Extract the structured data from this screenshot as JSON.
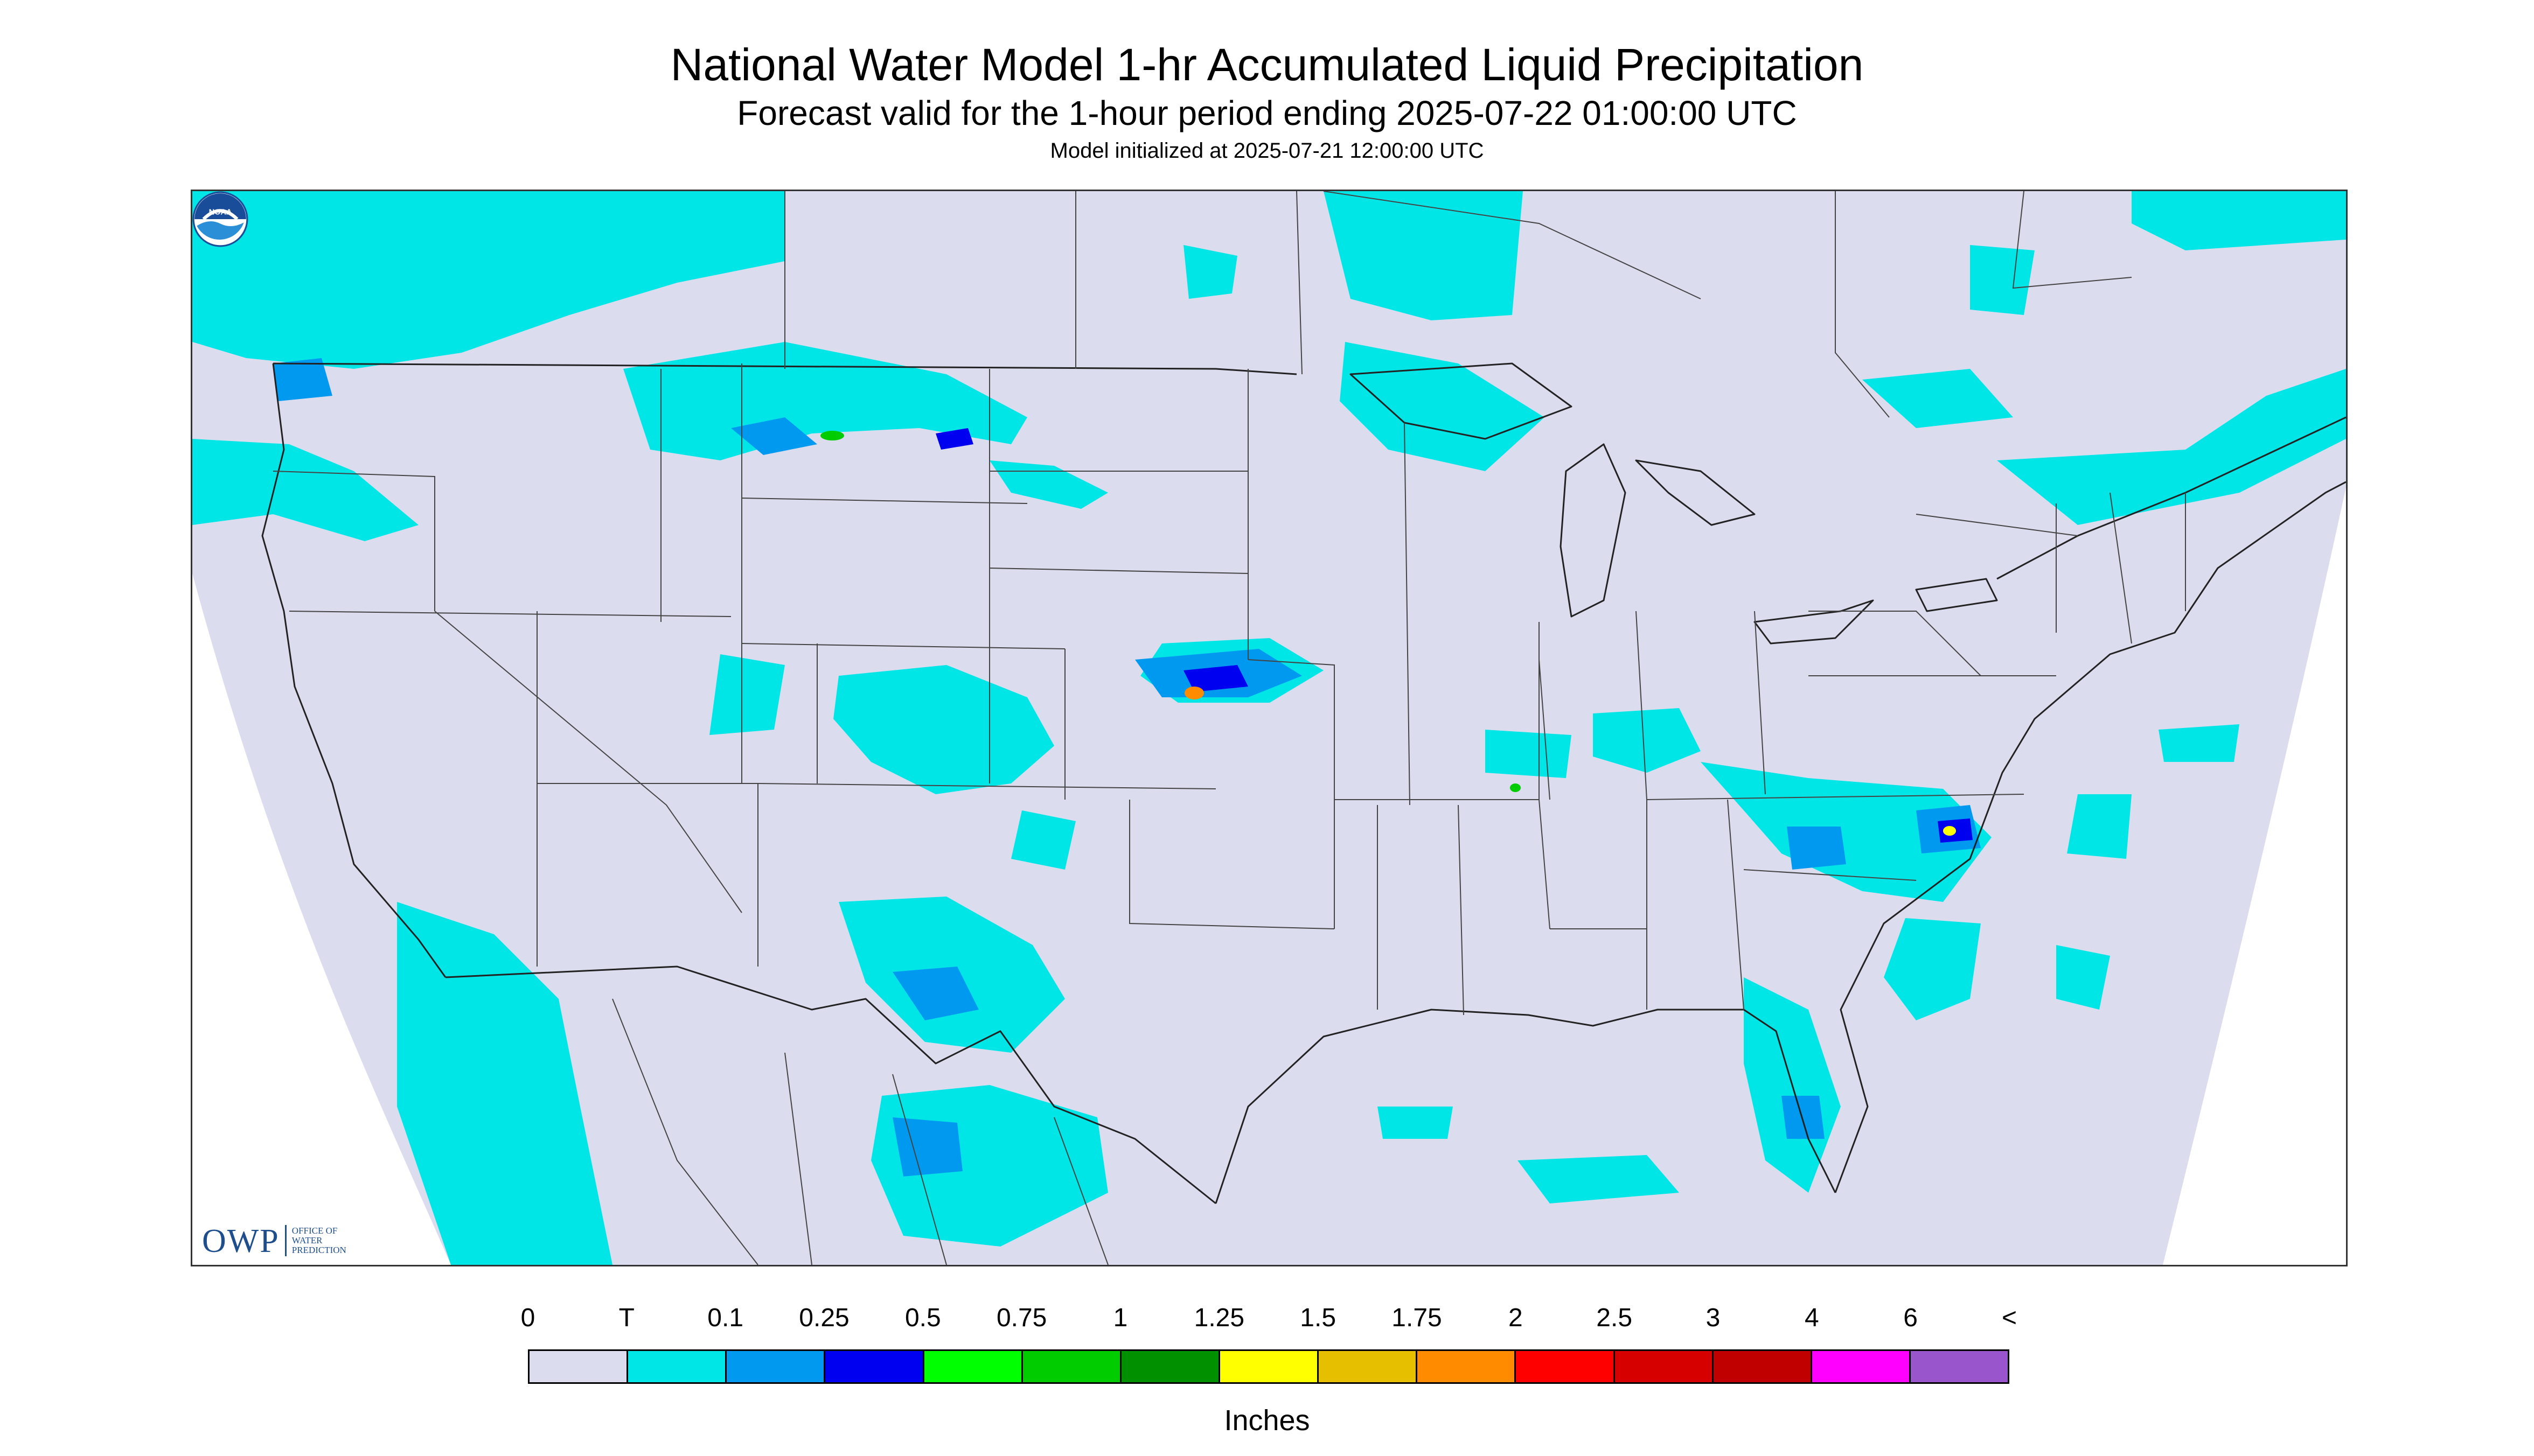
{
  "title": "National Water Model 1-hr Accumulated Liquid Precipitation",
  "subtitle": "Forecast valid for the 1-hour period ending 2025-07-22 01:00:00 UTC",
  "model_init": "Model initialized at 2025-07-21 12:00:00 UTC",
  "units": "Inches",
  "logos": {
    "owp_mark": "OWP",
    "owp_text": [
      "OFFICE OF",
      "WATER",
      "PREDICTION"
    ],
    "noaa_text": "NOAA"
  },
  "colors": {
    "domain_fill": "#dcdcef",
    "outside_fill": "#ffffff",
    "boundary": "#222222"
  },
  "legend": {
    "tick_labels": [
      "0",
      "T",
      "0.1",
      "0.25",
      "0.5",
      "0.75",
      "1",
      "1.25",
      "1.5",
      "1.75",
      "2",
      "2.5",
      "3",
      "4",
      "6",
      "<"
    ],
    "colors": [
      "#dcdcef",
      "#00e6e6",
      "#0099f0",
      "#0000f0",
      "#00ff00",
      "#00cc00",
      "#009000",
      "#ffff00",
      "#e6c000",
      "#ff8c00",
      "#ff0000",
      "#d60000",
      "#c00000",
      "#ff00ff",
      "#9955cc"
    ]
  }
}
